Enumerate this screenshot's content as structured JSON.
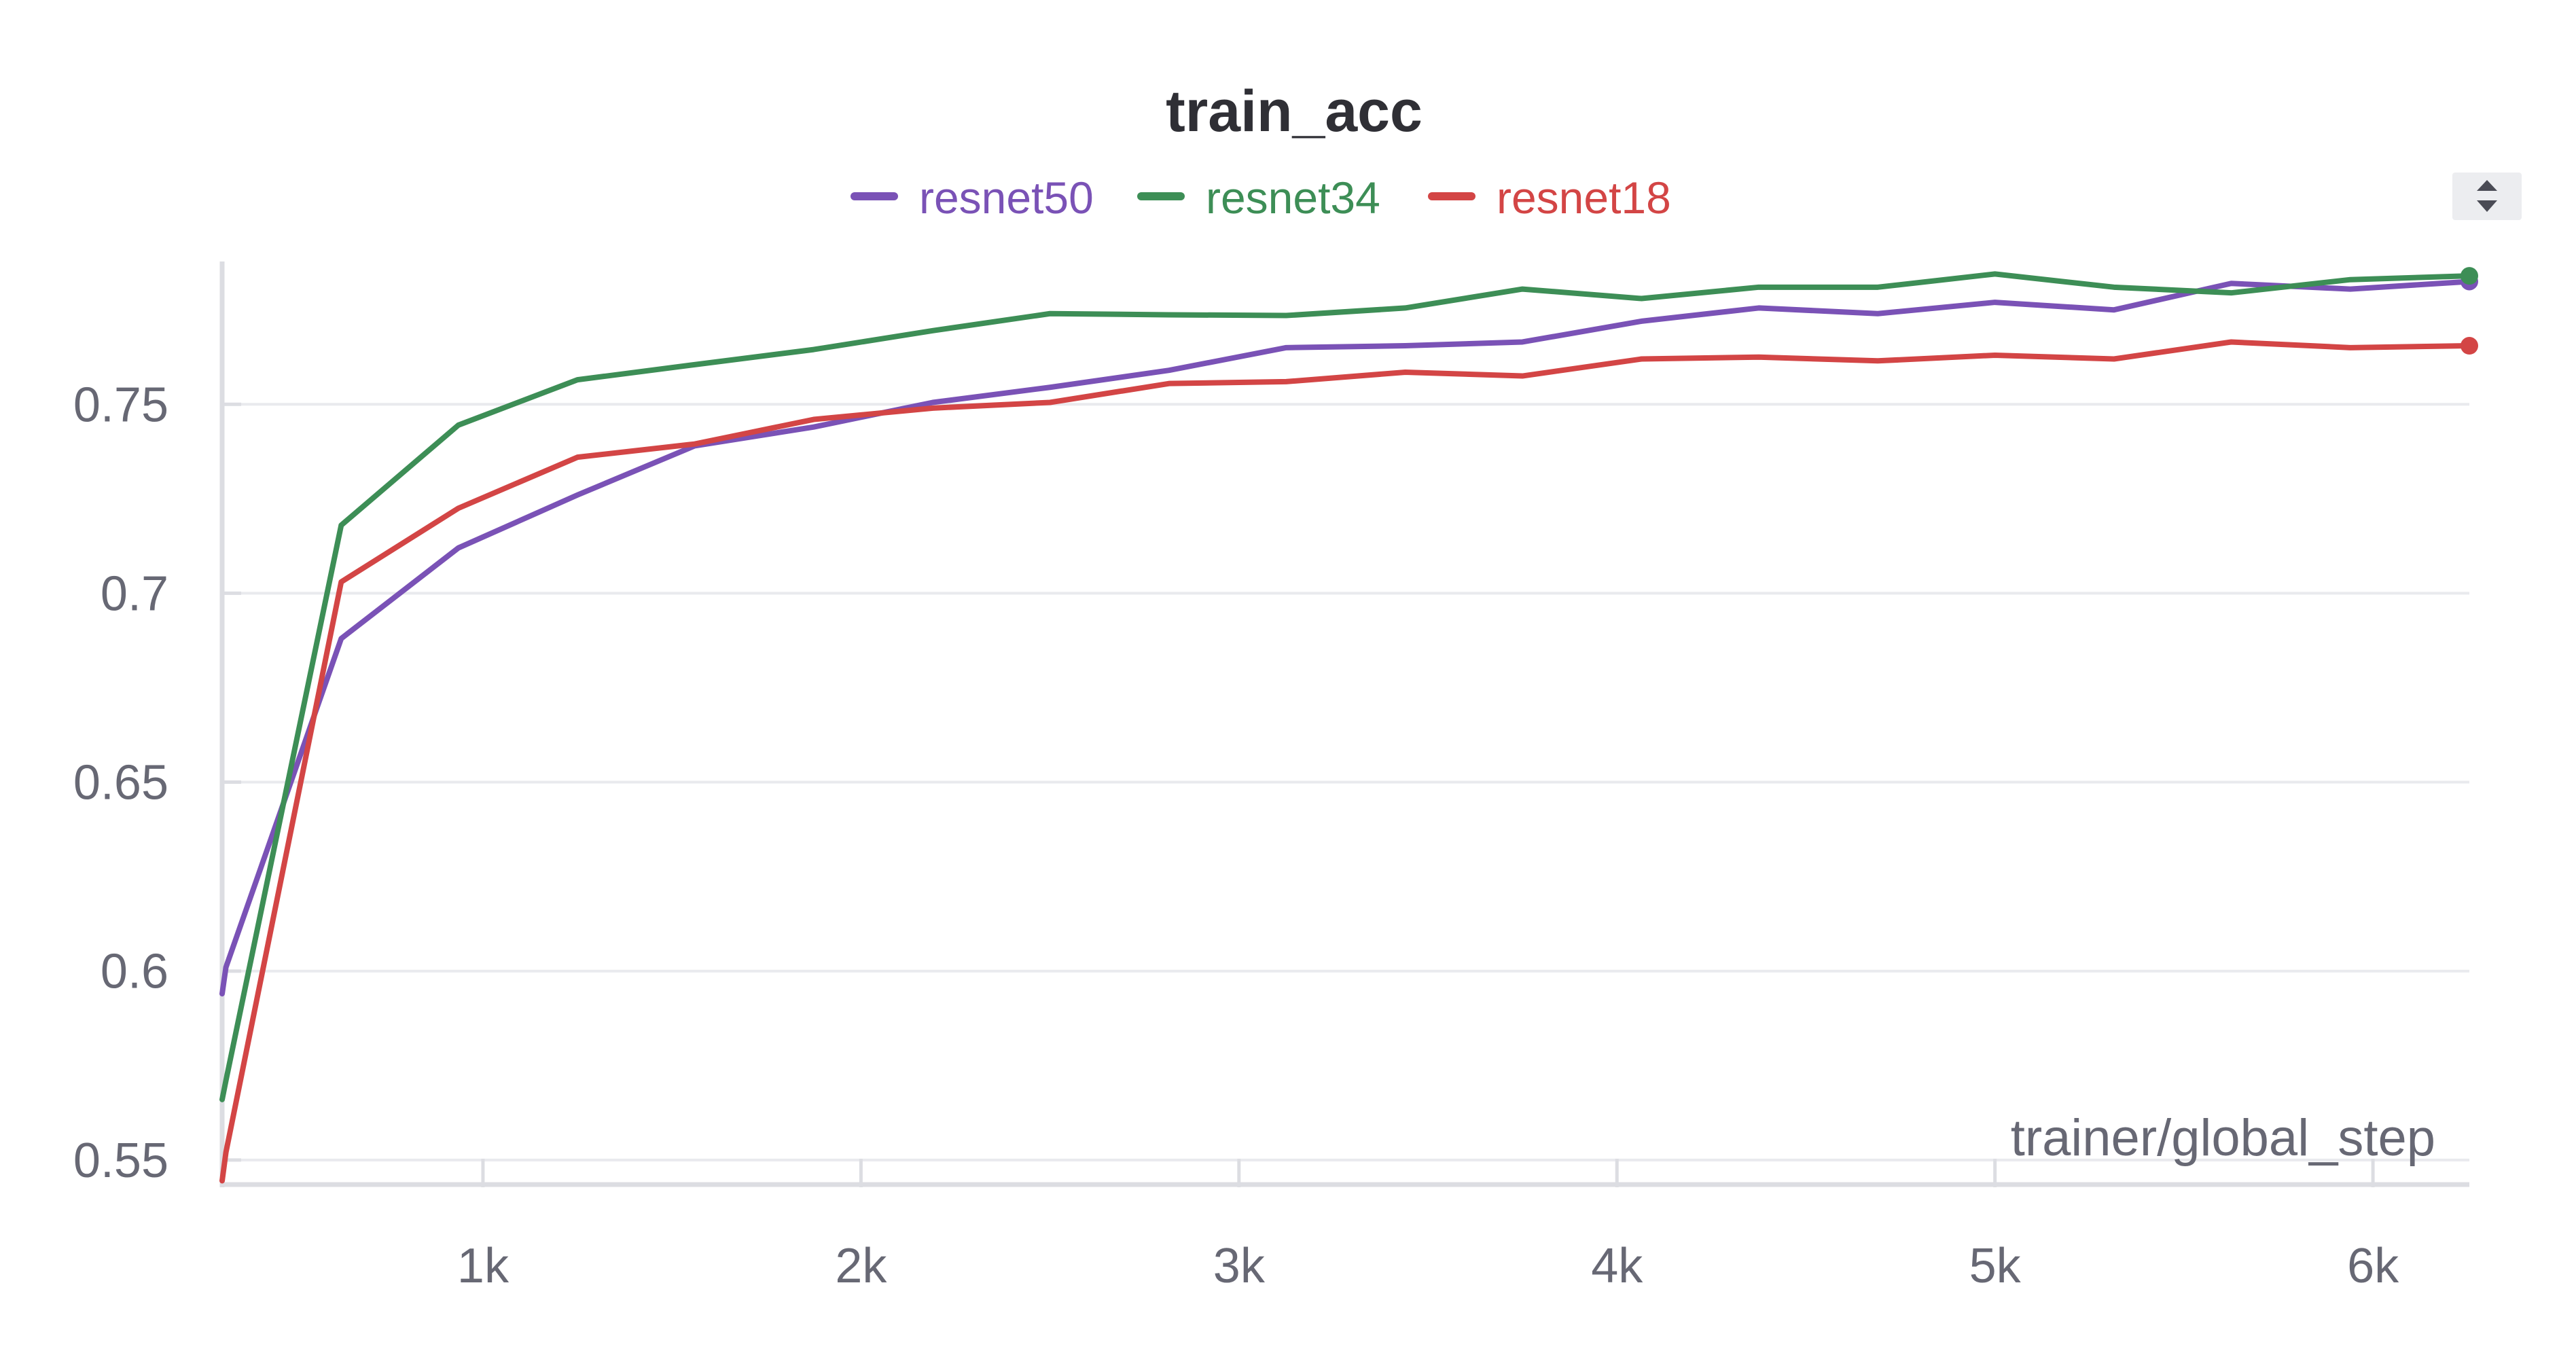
{
  "chart_data": {
    "type": "line",
    "title": "train_acc",
    "xlabel": "trainer/global_step",
    "ylabel": "",
    "legend_position": "top-center",
    "grid": true,
    "xlim": [
      310,
      6255
    ],
    "ylim": [
      0.5435,
      0.7878
    ],
    "x_ticks": [
      {
        "value": 1000,
        "label": "1k"
      },
      {
        "value": 2000,
        "label": "2k"
      },
      {
        "value": 3000,
        "label": "3k"
      },
      {
        "value": 4000,
        "label": "4k"
      },
      {
        "value": 5000,
        "label": "5k"
      },
      {
        "value": 6000,
        "label": "6k"
      }
    ],
    "y_ticks": [
      {
        "value": 0.55,
        "label": "0.55"
      },
      {
        "value": 0.6,
        "label": "0.6"
      },
      {
        "value": 0.65,
        "label": "0.65"
      },
      {
        "value": 0.7,
        "label": "0.7"
      },
      {
        "value": 0.75,
        "label": "0.75"
      }
    ],
    "series": [
      {
        "name": "resnet50",
        "color": "#7A52B6",
        "points": [
          [
            310,
            0.594
          ],
          [
            320,
            0.601
          ],
          [
            625,
            0.688
          ],
          [
            935,
            0.712
          ],
          [
            1250,
            0.726
          ],
          [
            1560,
            0.739
          ],
          [
            1875,
            0.744
          ],
          [
            2190,
            0.7505
          ],
          [
            2500,
            0.7545
          ],
          [
            2815,
            0.759
          ],
          [
            3125,
            0.765
          ],
          [
            3440,
            0.7655
          ],
          [
            3750,
            0.7665
          ],
          [
            4065,
            0.772
          ],
          [
            4375,
            0.7755
          ],
          [
            4690,
            0.774
          ],
          [
            5000,
            0.777
          ],
          [
            5315,
            0.775
          ],
          [
            5625,
            0.782
          ],
          [
            5940,
            0.7805
          ],
          [
            6255,
            0.7825
          ]
        ]
      },
      {
        "name": "resnet34",
        "color": "#3D8E56",
        "points": [
          [
            310,
            0.566
          ],
          [
            320,
            0.571
          ],
          [
            625,
            0.718
          ],
          [
            935,
            0.7445
          ],
          [
            1250,
            0.7565
          ],
          [
            1560,
            0.7605
          ],
          [
            1875,
            0.7645
          ],
          [
            2190,
            0.7695
          ],
          [
            2500,
            0.774
          ],
          [
            2815,
            0.7737
          ],
          [
            3125,
            0.7735
          ],
          [
            3440,
            0.7755
          ],
          [
            3750,
            0.7805
          ],
          [
            4065,
            0.778
          ],
          [
            4375,
            0.781
          ],
          [
            4690,
            0.781
          ],
          [
            5000,
            0.7845
          ],
          [
            5315,
            0.781
          ],
          [
            5625,
            0.7795
          ],
          [
            5940,
            0.783
          ],
          [
            6255,
            0.784
          ]
        ]
      },
      {
        "name": "resnet18",
        "color": "#D34545",
        "points": [
          [
            310,
            0.5445
          ],
          [
            320,
            0.552
          ],
          [
            625,
            0.703
          ],
          [
            935,
            0.7225
          ],
          [
            1250,
            0.736
          ],
          [
            1560,
            0.7395
          ],
          [
            1875,
            0.746
          ],
          [
            2190,
            0.749
          ],
          [
            2500,
            0.7505
          ],
          [
            2815,
            0.7555
          ],
          [
            3125,
            0.756
          ],
          [
            3440,
            0.7585
          ],
          [
            3750,
            0.7575
          ],
          [
            4065,
            0.762
          ],
          [
            4375,
            0.7625
          ],
          [
            4690,
            0.7615
          ],
          [
            5000,
            0.763
          ],
          [
            5315,
            0.762
          ],
          [
            5625,
            0.7665
          ],
          [
            5940,
            0.765
          ],
          [
            6255,
            0.7655
          ]
        ]
      }
    ]
  },
  "colors": {
    "title": "#2F2F35",
    "tick_label": "#676874",
    "axis_label": "#676874",
    "gridline": "#E9EAEE",
    "axis": "#DCDDE2",
    "scroll_button_bg": "#ECEDF0",
    "scroll_button_fg": "#4A4B55"
  },
  "controls": {
    "legend_scroll_icon": "up-down-arrows-icon"
  }
}
